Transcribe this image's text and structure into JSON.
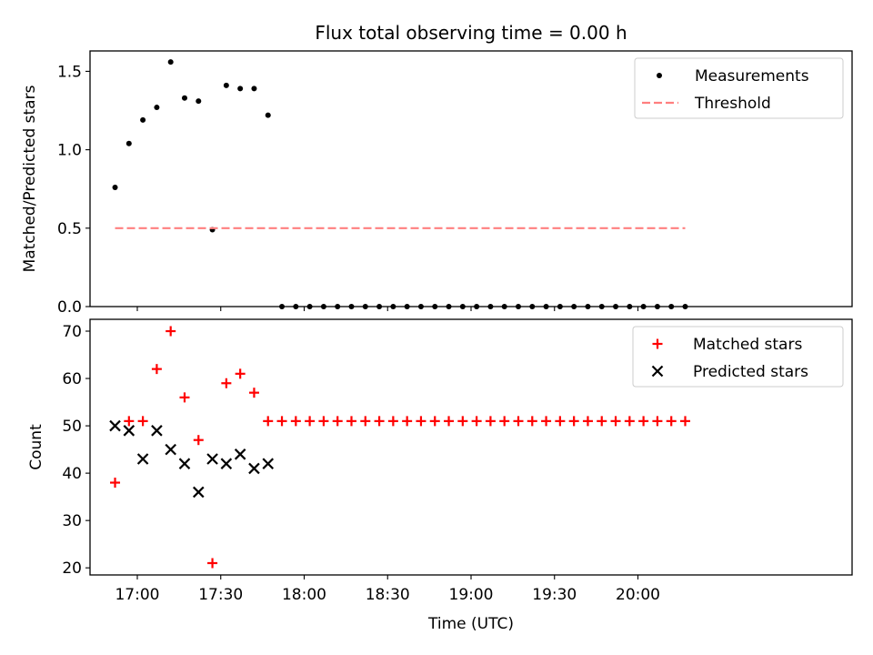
{
  "chart_data": [
    {
      "type": "scatter",
      "title": "Flux total observing time = 0.00 h",
      "xlabel": "",
      "ylabel": "Matched/Predicted stars",
      "xlim": [
        "16:43",
        "21:17"
      ],
      "ylim": [
        0,
        1.63
      ],
      "yticks": [
        0.0,
        0.5,
        1.0,
        1.5
      ],
      "ytick_labels": [
        "0.0",
        "0.5",
        "1.0",
        "1.5"
      ],
      "xticks": [
        "17:00",
        "17:30",
        "18:00",
        "18:30",
        "19:00",
        "19:30",
        "20:00"
      ],
      "grid": false,
      "legend": "top-right",
      "series": [
        {
          "name": "Measurements",
          "marker": "dot",
          "color": "#000000",
          "x": [
            "16:52",
            "16:57",
            "17:02",
            "17:07",
            "17:12",
            "17:17",
            "17:22",
            "17:27",
            "17:32",
            "17:37",
            "17:42",
            "17:47",
            "17:52",
            "17:57",
            "18:02",
            "18:07",
            "18:12",
            "18:17",
            "18:22",
            "18:27",
            "18:32",
            "18:37",
            "18:42",
            "18:47",
            "18:52",
            "18:57",
            "19:02",
            "19:07",
            "19:12",
            "19:17",
            "19:22",
            "19:27",
            "19:32",
            "19:37",
            "19:42",
            "19:47",
            "19:52",
            "19:57",
            "20:02",
            "20:07",
            "20:12",
            "20:17"
          ],
          "y": [
            0.76,
            1.04,
            1.19,
            1.27,
            1.56,
            1.33,
            1.31,
            0.49,
            1.41,
            1.39,
            1.39,
            1.22,
            0,
            0,
            0,
            0,
            0,
            0,
            0,
            0,
            0,
            0,
            0,
            0,
            0,
            0,
            0,
            0,
            0,
            0,
            0,
            0,
            0,
            0,
            0,
            0,
            0,
            0,
            0,
            0,
            0,
            0
          ]
        },
        {
          "name": "Threshold",
          "style": "dashed",
          "color": "#ff7f7f",
          "x": [
            "16:52",
            "20:17"
          ],
          "y": [
            0.5,
            0.5
          ]
        }
      ]
    },
    {
      "type": "scatter",
      "title": "",
      "xlabel": "Time (UTC)",
      "ylabel": "Count",
      "xlim": [
        "16:43",
        "21:17"
      ],
      "ylim": [
        18.5,
        72.5
      ],
      "yticks": [
        20,
        30,
        40,
        50,
        60,
        70
      ],
      "ytick_labels": [
        "20",
        "30",
        "40",
        "50",
        "60",
        "70"
      ],
      "xticks": [
        "17:00",
        "17:30",
        "18:00",
        "18:30",
        "19:00",
        "19:30",
        "20:00"
      ],
      "xtick_labels": [
        "17:00",
        "17:30",
        "18:00",
        "18:30",
        "19:00",
        "19:30",
        "20:00"
      ],
      "grid": false,
      "legend": "top-right",
      "series": [
        {
          "name": "Matched stars",
          "marker": "plus",
          "color": "#ff0000",
          "x": [
            "16:52",
            "16:57",
            "17:02",
            "17:07",
            "17:12",
            "17:17",
            "17:22",
            "17:27",
            "17:32",
            "17:37",
            "17:42",
            "17:47",
            "17:52",
            "17:57",
            "18:02",
            "18:07",
            "18:12",
            "18:17",
            "18:22",
            "18:27",
            "18:32",
            "18:37",
            "18:42",
            "18:47",
            "18:52",
            "18:57",
            "19:02",
            "19:07",
            "19:12",
            "19:17",
            "19:22",
            "19:27",
            "19:32",
            "19:37",
            "19:42",
            "19:47",
            "19:52",
            "19:57",
            "20:02",
            "20:07",
            "20:12",
            "20:17"
          ],
          "y": [
            38,
            51,
            51,
            62,
            70,
            56,
            47,
            21,
            59,
            61,
            57,
            51,
            51,
            51,
            51,
            51,
            51,
            51,
            51,
            51,
            51,
            51,
            51,
            51,
            51,
            51,
            51,
            51,
            51,
            51,
            51,
            51,
            51,
            51,
            51,
            51,
            51,
            51,
            51,
            51,
            51,
            51
          ]
        },
        {
          "name": "Predicted stars",
          "marker": "x",
          "color": "#000000",
          "x": [
            "16:52",
            "16:57",
            "17:02",
            "17:07",
            "17:12",
            "17:17",
            "17:22",
            "17:27",
            "17:32",
            "17:37",
            "17:42",
            "17:47"
          ],
          "y": [
            50,
            49,
            43,
            49,
            45,
            42,
            36,
            43,
            42,
            44,
            41,
            42
          ]
        }
      ]
    }
  ]
}
